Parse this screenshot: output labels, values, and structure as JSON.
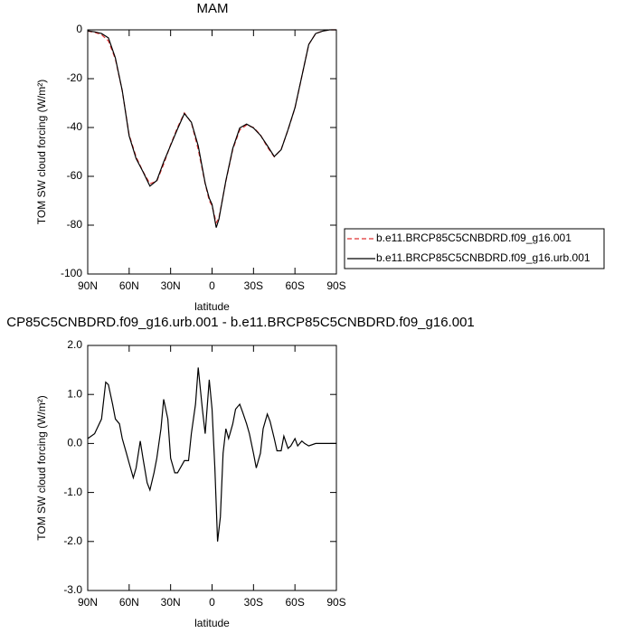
{
  "chart_data": [
    {
      "type": "line",
      "title": "MAM",
      "xlabel": "latitude",
      "ylabel": "TOM SW cloud forcing (W/m²)",
      "x": [
        90,
        85,
        80,
        75,
        70,
        65,
        60,
        55,
        50,
        45,
        40,
        35,
        30,
        25,
        20,
        15,
        10,
        5,
        2,
        0,
        -3,
        -5,
        -10,
        -15,
        -20,
        -25,
        -30,
        -35,
        -40,
        -45,
        -50,
        -55,
        -60,
        -65,
        -70,
        -75,
        -80,
        -85,
        -90
      ],
      "series": [
        {
          "name": "b.e11.BRCP85C5CNBDRD.f09_g16.001",
          "color": "#e03030",
          "dash": true,
          "values": [
            -0.5,
            -1,
            -2,
            -4.5,
            -12,
            -25,
            -43,
            -52,
            -58,
            -63,
            -62,
            -55,
            -47,
            -40,
            -34,
            -38,
            -49,
            -63,
            -70,
            -72,
            -79,
            -77,
            -62,
            -49,
            -41,
            -39,
            -40,
            -43,
            -48,
            -52,
            -49,
            -41,
            -32,
            -19,
            -6,
            -1.5,
            -0.5,
            0,
            0
          ]
        },
        {
          "name": "b.e11.BRCP85C5CNBDRD.f09_g16.urb.001",
          "color": "#000000",
          "dash": false,
          "values": [
            -0.4,
            -0.8,
            -1.5,
            -3.3,
            -11.5,
            -24.9,
            -43.4,
            -52.7,
            -58.1,
            -64,
            -61.7,
            -54.1,
            -47.3,
            -40.6,
            -34.3,
            -37.8,
            -47.5,
            -62.8,
            -69,
            -71.5,
            -81,
            -77.5,
            -61.7,
            -48.6,
            -40.2,
            -38.6,
            -40.2,
            -43.2,
            -47.4,
            -51.9,
            -49.1,
            -40.9,
            -31.9,
            -19,
            -6,
            -1.5,
            -0.5,
            0,
            0
          ]
        }
      ],
      "xlim": [
        90,
        -90
      ],
      "xticks": [
        {
          "value": 90,
          "label": "90N"
        },
        {
          "value": 60,
          "label": "60N"
        },
        {
          "value": 30,
          "label": "30N"
        },
        0,
        {
          "value": -30,
          "label": "30S"
        },
        {
          "value": -60,
          "label": "60S"
        },
        {
          "value": -90,
          "label": "90S"
        }
      ],
      "ylim": [
        -100,
        0
      ],
      "yticks": [
        0,
        -20,
        -40,
        -60,
        -80,
        -100
      ],
      "legend": "right"
    },
    {
      "type": "line",
      "title": "CP85C5CNBDRD.f09_g16.urb.001 - b.e11.BRCP85C5CNBDRD.f09_g16.001",
      "xlabel": "latitude",
      "ylabel": "TOM SW cloud forcing (W/m²)",
      "x": [
        90,
        85,
        80,
        77,
        75,
        72,
        70,
        67,
        65,
        62,
        60,
        57,
        55,
        52,
        50,
        47,
        45,
        42,
        40,
        37,
        35,
        32,
        30,
        27,
        25,
        22,
        20,
        17,
        15,
        12,
        10,
        7,
        5,
        2,
        0,
        -2,
        -4,
        -6,
        -8,
        -10,
        -12,
        -15,
        -17,
        -20,
        -22,
        -25,
        -27,
        -30,
        -32,
        -35,
        -37,
        -40,
        -42,
        -45,
        -47,
        -50,
        -52,
        -55,
        -57,
        -60,
        -62,
        -65,
        -67,
        -70,
        -75,
        -80,
        -85,
        -90
      ],
      "series": [
        {
          "color": "#000000",
          "dash": false,
          "values": [
            0.1,
            0.2,
            0.5,
            1.25,
            1.2,
            0.8,
            0.5,
            0.4,
            0.1,
            -0.2,
            -0.4,
            -0.7,
            -0.5,
            0.05,
            -0.3,
            -0.8,
            -0.95,
            -0.6,
            -0.3,
            0.3,
            0.9,
            0.5,
            -0.3,
            -0.6,
            -0.6,
            -0.45,
            -0.35,
            -0.35,
            0.2,
            0.8,
            1.55,
            0.7,
            0.2,
            1.3,
            0.7,
            -0.5,
            -2.0,
            -1.5,
            -0.2,
            0.3,
            0.1,
            0.4,
            0.7,
            0.8,
            0.65,
            0.4,
            0.2,
            -0.2,
            -0.5,
            -0.2,
            0.3,
            0.6,
            0.45,
            0.1,
            -0.15,
            -0.15,
            0.15,
            -0.1,
            -0.05,
            0.1,
            -0.05,
            0.05,
            0,
            -0.05,
            0,
            0,
            0,
            0
          ]
        }
      ],
      "xlim": [
        90,
        -90
      ],
      "xticks": [
        {
          "value": 90,
          "label": "90N"
        },
        {
          "value": 60,
          "label": "60N"
        },
        {
          "value": 30,
          "label": "30N"
        },
        0,
        {
          "value": -30,
          "label": "30S"
        },
        {
          "value": -60,
          "label": "60S"
        },
        {
          "value": -90,
          "label": "90S"
        }
      ],
      "ylim": [
        -3,
        2
      ],
      "yticks": [
        {
          "value": 2,
          "label": "2.0"
        },
        {
          "value": 1,
          "label": "1.0"
        },
        {
          "value": 0,
          "label": "0.0"
        },
        {
          "value": -1,
          "label": "-1.0"
        },
        {
          "value": -2,
          "label": "-2.0"
        },
        {
          "value": -3,
          "label": "-3.0"
        }
      ]
    }
  ]
}
